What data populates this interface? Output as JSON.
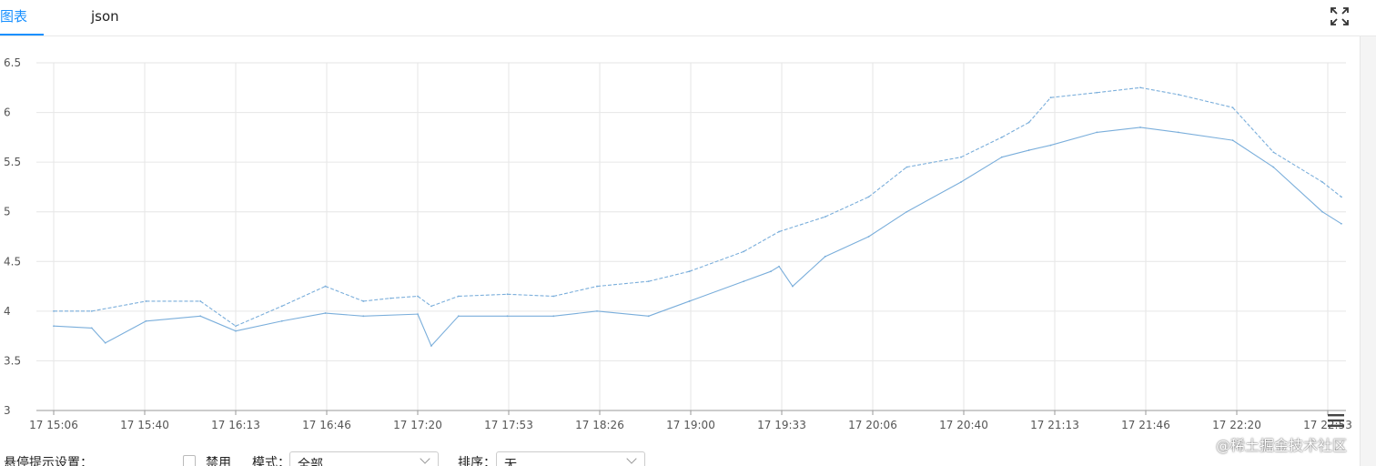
{
  "tabs": [
    {
      "label": "图表",
      "active": true
    },
    {
      "label": "json",
      "active": false
    }
  ],
  "icons": {
    "fullscreen": "expand-icon",
    "menu": "hamburger-menu-icon"
  },
  "colors": {
    "accent": "#1890ff",
    "series": "#7aaedb",
    "grid": "#e6e6e6"
  },
  "chart_data": {
    "type": "line",
    "title": "",
    "xlabel": "",
    "ylabel": "",
    "ylim": [
      3,
      6.5
    ],
    "yticks": [
      "3",
      "3.5",
      "4",
      "4.5",
      "5",
      "5.5",
      "6",
      "6.5"
    ],
    "xticks": [
      "17 15:06",
      "17 15:40",
      "17 16:13",
      "17 16:46",
      "17 17:20",
      "17 17:53",
      "17 18:26",
      "17 19:00",
      "17 19:33",
      "17 20:06",
      "17 20:40",
      "17 21:13",
      "17 21:46",
      "17 22:20",
      "17 22:53"
    ],
    "grid": true,
    "series": [
      {
        "style": "dashed",
        "x": [
          "15:06",
          "15:20",
          "15:40",
          "16:00",
          "16:13",
          "16:30",
          "16:46",
          "17:00",
          "17:10",
          "17:20",
          "17:25",
          "17:35",
          "17:53",
          "18:10",
          "18:26",
          "18:45",
          "19:00",
          "19:20",
          "19:33",
          "19:50",
          "20:06",
          "20:20",
          "20:40",
          "20:55",
          "21:05",
          "21:13",
          "21:30",
          "21:46",
          "22:00",
          "22:20",
          "22:35",
          "22:53",
          "23:00"
        ],
        "values": [
          4.0,
          4.0,
          4.1,
          4.1,
          3.85,
          4.05,
          4.25,
          4.1,
          4.13,
          4.15,
          4.05,
          4.15,
          4.17,
          4.15,
          4.25,
          4.3,
          4.4,
          4.6,
          4.8,
          4.95,
          5.15,
          5.45,
          5.55,
          5.75,
          5.9,
          6.15,
          6.2,
          6.25,
          6.18,
          6.05,
          5.6,
          5.3,
          5.15
        ]
      },
      {
        "style": "solid",
        "x": [
          "15:06",
          "15:20",
          "15:25",
          "15:40",
          "16:00",
          "16:13",
          "16:30",
          "16:46",
          "17:00",
          "17:20",
          "17:25",
          "17:35",
          "17:53",
          "18:10",
          "18:26",
          "18:45",
          "19:00",
          "19:20",
          "19:30",
          "19:33",
          "19:38",
          "19:50",
          "20:06",
          "20:20",
          "20:40",
          "20:55",
          "21:05",
          "21:13",
          "21:30",
          "21:46",
          "22:00",
          "22:20",
          "22:35",
          "22:53",
          "23:00"
        ],
        "values": [
          3.85,
          3.83,
          3.68,
          3.9,
          3.95,
          3.8,
          3.9,
          3.98,
          3.95,
          3.97,
          3.65,
          3.95,
          3.95,
          3.95,
          4.0,
          3.95,
          4.1,
          4.3,
          4.4,
          4.45,
          4.25,
          4.55,
          4.75,
          5.0,
          5.3,
          5.55,
          5.62,
          5.67,
          5.8,
          5.85,
          5.8,
          5.72,
          5.45,
          5.0,
          4.88
        ]
      }
    ]
  },
  "settings": {
    "label": "悬停提示设置：",
    "disable_label": "禁用",
    "mode_label": "模式：",
    "mode_value": "全部",
    "sort_label": "排序：",
    "sort_value": "无"
  },
  "watermark": "@稀土掘金技术社区"
}
